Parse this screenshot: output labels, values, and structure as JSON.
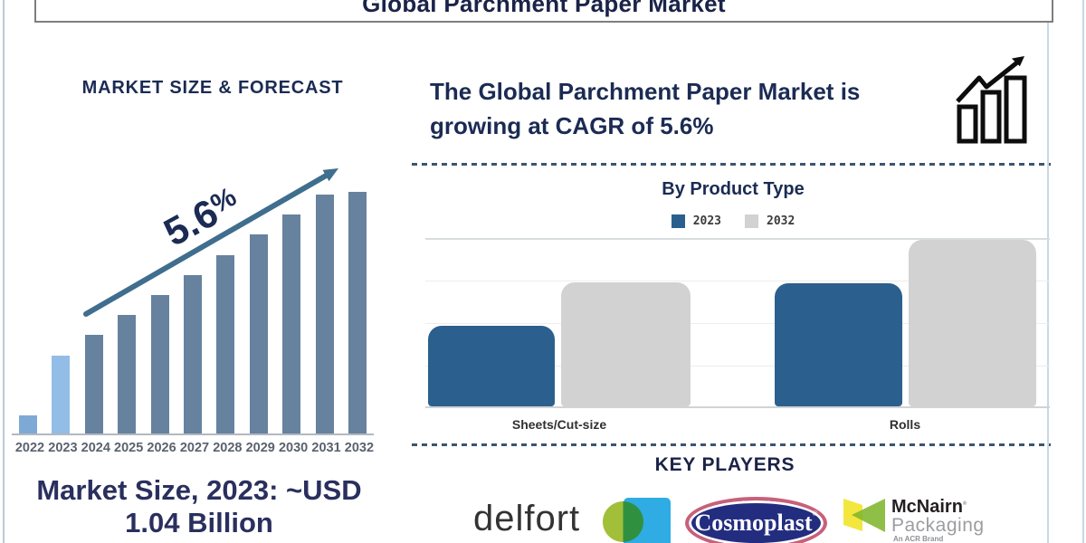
{
  "header": {
    "title": "Global Parchment Paper Market"
  },
  "left_panel": {
    "cagr_value": "5.6",
    "cagr_percent": "%",
    "market_size_line1": "Market Size, 2023: ~USD",
    "market_size_line2": "1.04 Billion"
  },
  "right_panel": {
    "heading": "The Global Parchment Paper Market is growing at CAGR of 5.6%",
    "growth_icon": "bar-chart-growth-icon",
    "key_players_heading": "KEY PLAYERS"
  },
  "key_players": [
    {
      "name": "delfort"
    },
    {
      "name": "Cosmoplast",
      "reg": "®"
    },
    {
      "name": "McNairn",
      "reg": "®",
      "name2": "Packaging",
      "tagline": "An ACR Brand"
    }
  ],
  "colors": {
    "navy_text": "#1b2b53",
    "bar_2023_blue": "#2b608e",
    "bar_2032_gray": "#d2d2d2",
    "left_bar_light_2022": "#7fa9d5",
    "left_bar_light_2023": "#92bde6",
    "left_bar_steel": "#66829f",
    "arrow": "#3f6e8e",
    "dashed_divider": "#3a566f"
  },
  "chart_data": [
    {
      "id": "market-size-forecast",
      "type": "bar",
      "title": "MARKET SIZE & FORECAST",
      "categories": [
        "2022",
        "2023",
        "2024",
        "2025",
        "2026",
        "2027",
        "2028",
        "2029",
        "2030",
        "2031",
        "2032"
      ],
      "values": [
        21,
        87,
        110,
        132,
        154,
        176,
        198,
        221,
        243,
        265,
        268
      ],
      "values_note": "relative bar heights in px; chart has no numeric axis",
      "annotations": [
        "5.6%",
        "Market Size, 2023: ~USD 1.04 Billion"
      ],
      "bar_colors": [
        "#7fa9d5",
        "#92bde6",
        "#66829f",
        "#66829f",
        "#66829f",
        "#66829f",
        "#66829f",
        "#66829f",
        "#66829f",
        "#66829f",
        "#66829f"
      ],
      "xlabel": "",
      "ylabel": "",
      "grid": false,
      "legend": false
    },
    {
      "id": "by-product-type",
      "type": "bar",
      "title": "By Product Type",
      "categories": [
        "Sheets/Cut-size",
        "Rolls"
      ],
      "series": [
        {
          "name": "2023",
          "color": "#2b608e",
          "values": [
            89,
            136
          ]
        },
        {
          "name": "2032",
          "color": "#d2d2d2",
          "values": [
            137,
            184
          ]
        }
      ],
      "values_note": "relative bar heights in px; chart has no numeric axis",
      "grid": true,
      "legend_position": "top"
    }
  ]
}
